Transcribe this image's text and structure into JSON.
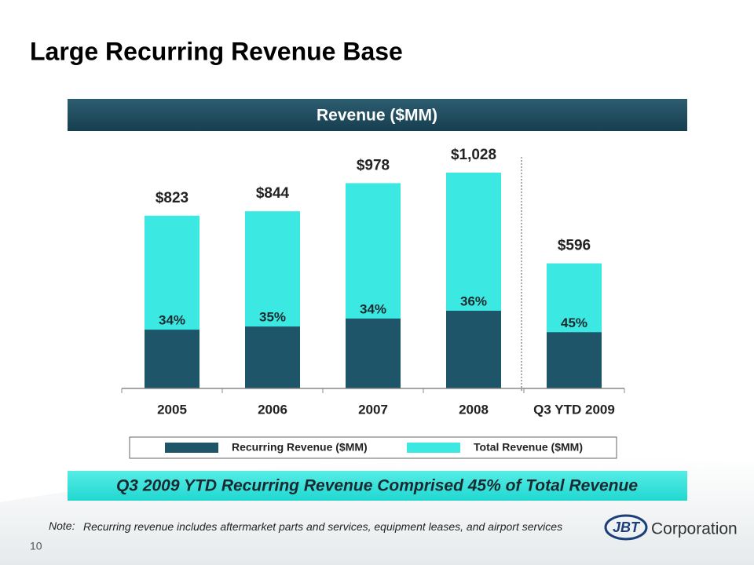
{
  "slide_title": "Large Recurring Revenue Base",
  "chart_data": {
    "type": "bar",
    "overlap": true,
    "title": "Revenue ($MM)",
    "categories": [
      "2005",
      "2006",
      "2007",
      "2008",
      "Q3 YTD 2009"
    ],
    "series": [
      {
        "name": "Recurring Revenue ($MM)",
        "color": "#1e5568",
        "values": [
          280,
          295,
          333,
          370,
          268
        ],
        "value_labels": [
          "34%",
          "35%",
          "34%",
          "36%",
          "45%"
        ]
      },
      {
        "name": "Total Revenue ($MM)",
        "color": "#3ce8e2",
        "values": [
          823,
          844,
          978,
          1028,
          596
        ],
        "value_labels": [
          "$823",
          "$844",
          "$978",
          "$1,028",
          "$596"
        ]
      }
    ],
    "ylim": [
      0,
      1100
    ]
  },
  "banner": "Q3 2009 YTD Recurring Revenue Comprised 45% of Total Revenue",
  "note": {
    "label": "Note:",
    "text": "Recurring revenue includes aftermarket parts and services, equipment leases, and airport services"
  },
  "page_number": "10",
  "logo": {
    "mark": "JBT",
    "text": "Corporation"
  }
}
